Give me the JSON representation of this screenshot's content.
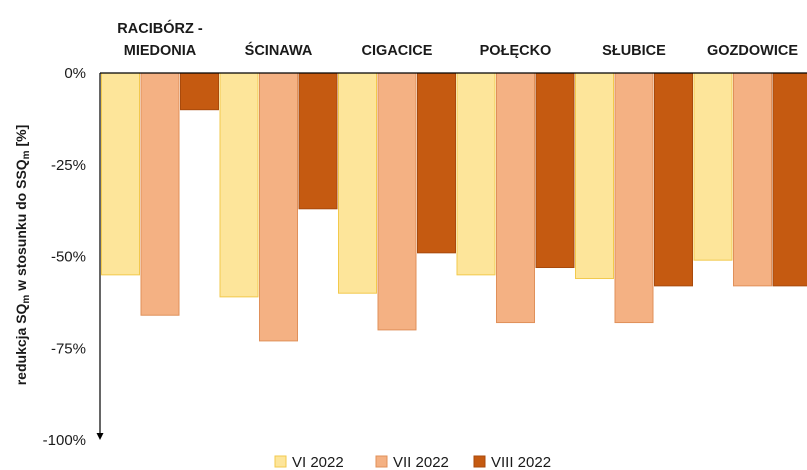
{
  "chart_data": {
    "type": "bar",
    "title": "",
    "categories": [
      [
        "RACIBÓRZ -",
        "MIEDONIA"
      ],
      [
        "ŚCINAWA"
      ],
      [
        "CIGACICE"
      ],
      [
        "POŁĘCKO"
      ],
      [
        "SŁUBICE"
      ],
      [
        "GOZDOWICE"
      ]
    ],
    "series": [
      {
        "name": "VI 2022",
        "color": "#fde59a",
        "stroke": "#f2c94c",
        "values": [
          -55,
          -61,
          -60,
          -55,
          -56,
          -51
        ]
      },
      {
        "name": "VII 2022",
        "color": "#f4b183",
        "stroke": "#e0905a",
        "values": [
          -66,
          -73,
          -70,
          -68,
          -68,
          -58
        ]
      },
      {
        "name": "VIII 2022",
        "color": "#c55a11",
        "stroke": "#a94a0c",
        "values": [
          -10,
          -37,
          -49,
          -53,
          -58,
          -58
        ]
      }
    ],
    "ylim": [
      -100,
      0
    ],
    "yticks": [
      0,
      -25,
      -50,
      -75,
      -100
    ],
    "ytick_labels": [
      "0%",
      "-25%",
      "-50%",
      "-75%",
      "-100%"
    ],
    "ylabel": {
      "main": "redukcja SQ",
      "sub1": "m",
      "mid": " w stosunku do SSQ",
      "sub2": "m",
      "end": " [%]"
    },
    "xlabel": "",
    "legend_position": "bottom",
    "grid": false
  }
}
